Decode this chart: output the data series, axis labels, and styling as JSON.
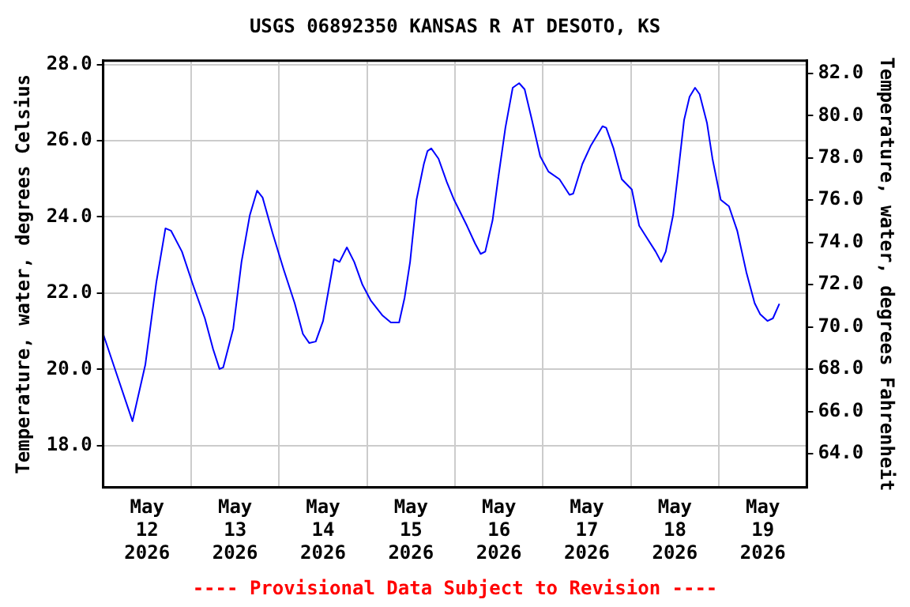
{
  "chart_data": {
    "type": "line",
    "title": "USGS 06892350 KANSAS R AT DESOTO, KS",
    "ylabel": "Temperature, water, degrees Celsius",
    "y2label": "Temperature, water, degrees Fahrenheit",
    "annotations": [
      "---- Provisional Data Subject to Revision ----"
    ],
    "x": [
      "2026-05-12T00:00",
      "2026-05-12T08:00",
      "2026-05-12T11:30",
      "2026-05-12T14:30",
      "2026-05-12T17:00",
      "2026-05-12T18:30",
      "2026-05-12T21:30",
      "2026-05-13T00:30",
      "2026-05-13T03:45",
      "2026-05-13T06:00",
      "2026-05-13T07:45",
      "2026-05-13T08:45",
      "2026-05-13T11:30",
      "2026-05-13T13:45",
      "2026-05-13T16:00",
      "2026-05-13T18:00",
      "2026-05-13T19:30",
      "2026-05-13T22:15",
      "2026-05-14T01:15",
      "2026-05-14T04:15",
      "2026-05-14T06:30",
      "2026-05-14T08:15",
      "2026-05-14T10:00",
      "2026-05-14T12:00",
      "2026-05-14T15:00",
      "2026-05-14T16:30",
      "2026-05-14T18:30",
      "2026-05-14T20:30",
      "2026-05-14T22:45",
      "2026-05-15T01:00",
      "2026-05-15T04:15",
      "2026-05-15T06:30",
      "2026-05-15T08:45",
      "2026-05-15T10:15",
      "2026-05-15T11:45",
      "2026-05-15T13:30",
      "2026-05-15T15:30",
      "2026-05-15T16:30",
      "2026-05-15T17:30",
      "2026-05-15T19:30",
      "2026-05-15T21:45",
      "2026-05-15T23:45",
      "2026-05-16T03:15",
      "2026-05-16T05:30",
      "2026-05-16T07:00",
      "2026-05-16T08:15",
      "2026-05-16T10:15",
      "2026-05-16T11:45",
      "2026-05-16T13:45",
      "2026-05-16T15:45",
      "2026-05-16T17:30",
      "2026-05-16T19:00",
      "2026-05-16T21:00",
      "2026-05-16T23:15",
      "2026-05-17T01:30",
      "2026-05-17T04:30",
      "2026-05-17T07:15",
      "2026-05-17T08:15",
      "2026-05-17T10:45",
      "2026-05-17T13:00",
      "2026-05-17T16:15",
      "2026-05-17T17:15",
      "2026-05-17T19:15",
      "2026-05-17T21:30",
      "2026-05-18T00:15",
      "2026-05-18T02:15",
      "2026-05-18T04:30",
      "2026-05-18T06:45",
      "2026-05-18T08:15",
      "2026-05-18T09:30",
      "2026-05-18T11:30",
      "2026-05-18T13:00",
      "2026-05-18T14:30",
      "2026-05-18T16:00",
      "2026-05-18T17:30",
      "2026-05-18T18:45",
      "2026-05-18T20:45",
      "2026-05-18T22:15",
      "2026-05-19T00:30",
      "2026-05-19T02:45",
      "2026-05-19T05:00",
      "2026-05-19T07:30",
      "2026-05-19T09:45",
      "2026-05-19T11:15",
      "2026-05-19T13:15",
      "2026-05-19T14:45",
      "2026-05-19T16:30"
    ],
    "series": [
      {
        "color": "#0000ff",
        "values": [
          20.93,
          18.64,
          20.12,
          22.28,
          23.7,
          23.64,
          23.09,
          22.22,
          21.34,
          20.53,
          20.01,
          20.05,
          21.07,
          22.82,
          24.04,
          24.69,
          24.51,
          23.57,
          22.62,
          21.74,
          20.93,
          20.69,
          20.73,
          21.27,
          22.89,
          22.82,
          23.2,
          22.82,
          22.22,
          21.81,
          21.41,
          21.23,
          21.23,
          21.88,
          22.82,
          24.45,
          25.39,
          25.73,
          25.8,
          25.53,
          24.92,
          24.45,
          23.77,
          23.3,
          23.03,
          23.09,
          23.91,
          24.99,
          26.34,
          27.39,
          27.51,
          27.35,
          26.54,
          25.59,
          25.19,
          24.99,
          24.58,
          24.61,
          25.39,
          25.86,
          26.38,
          26.34,
          25.8,
          24.99,
          24.72,
          23.77,
          23.43,
          23.09,
          22.82,
          23.09,
          24.04,
          25.26,
          26.54,
          27.15,
          27.39,
          27.22,
          26.47,
          25.53,
          24.45,
          24.28,
          23.64,
          22.55,
          21.74,
          21.45,
          21.27,
          21.34,
          21.72
        ]
      }
    ],
    "xlim": [
      "2026-05-12T00:00",
      "2026-05-20T00:00"
    ],
    "xticks": [
      {
        "value": "2026-05-12T12:00",
        "label": "May\n12\n2026"
      },
      {
        "value": "2026-05-13T00:00",
        "label": null
      },
      {
        "value": "2026-05-13T12:00",
        "label": "May\n13\n2026"
      },
      {
        "value": "2026-05-14T00:00",
        "label": null
      },
      {
        "value": "2026-05-14T12:00",
        "label": "May\n14\n2026"
      },
      {
        "value": "2026-05-15T00:00",
        "label": null
      },
      {
        "value": "2026-05-15T12:00",
        "label": "May\n15\n2026"
      },
      {
        "value": "2026-05-16T00:00",
        "label": null
      },
      {
        "value": "2026-05-16T12:00",
        "label": "May\n16\n2026"
      },
      {
        "value": "2026-05-17T00:00",
        "label": null
      },
      {
        "value": "2026-05-17T12:00",
        "label": "May\n17\n2026"
      },
      {
        "value": "2026-05-18T00:00",
        "label": null
      },
      {
        "value": "2026-05-18T12:00",
        "label": "May\n18\n2026"
      },
      {
        "value": "2026-05-19T00:00",
        "label": null
      },
      {
        "value": "2026-05-19T12:00",
        "label": "May\n19\n2026"
      }
    ],
    "ylim": [
      16.9,
      28.1
    ],
    "yticks": [
      {
        "value": 18,
        "label": "18.0"
      },
      {
        "value": 20,
        "label": "20.0"
      },
      {
        "value": 22,
        "label": "22.0"
      },
      {
        "value": 24,
        "label": "24.0"
      },
      {
        "value": 26,
        "label": "26.0"
      },
      {
        "value": 28,
        "label": "28.0"
      }
    ],
    "y2lim": [
      62.4,
      82.6
    ],
    "y2ticks": [
      {
        "value": 64,
        "label": "64.0"
      },
      {
        "value": 66,
        "label": "66.0"
      },
      {
        "value": 68,
        "label": "68.0"
      },
      {
        "value": 70,
        "label": "70.0"
      },
      {
        "value": 72,
        "label": "72.0"
      },
      {
        "value": 74,
        "label": "74.0"
      },
      {
        "value": 76,
        "label": "76.0"
      },
      {
        "value": 78,
        "label": "78.0"
      },
      {
        "value": 80,
        "label": "80.0"
      },
      {
        "value": 82,
        "label": "82.0"
      }
    ],
    "grid": true,
    "legend": false,
    "marker": "none",
    "line_style": "solid"
  }
}
